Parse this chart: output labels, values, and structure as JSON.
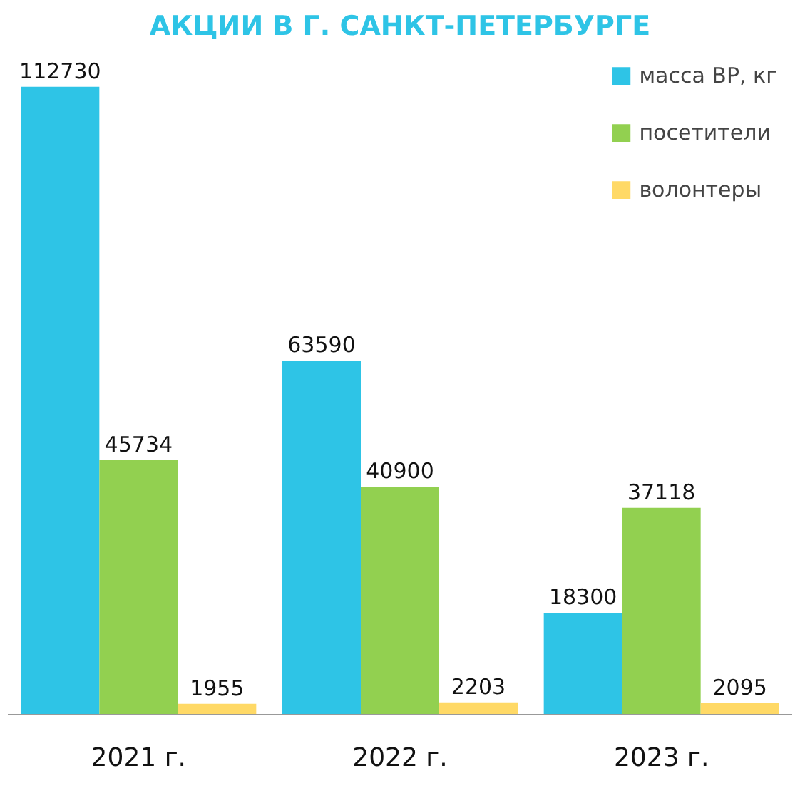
{
  "chart_data": {
    "type": "bar",
    "title": "АКЦИИ В Г. САНКТ-ПЕТЕРБУРГЕ",
    "categories": [
      "2021 г.",
      "2022 г.",
      "2023 г."
    ],
    "series": [
      {
        "name": "масса ВР, кг",
        "color": "#2ec4e6",
        "values": [
          112730,
          63590,
          18300
        ]
      },
      {
        "name": "посетители",
        "color": "#92d050",
        "values": [
          45734,
          40900,
          37118
        ]
      },
      {
        "name": "волонтеры",
        "color": "#ffd966",
        "values": [
          1955,
          2203,
          2095
        ]
      }
    ],
    "data_labels": true,
    "legend": "top right",
    "grid": false
  }
}
